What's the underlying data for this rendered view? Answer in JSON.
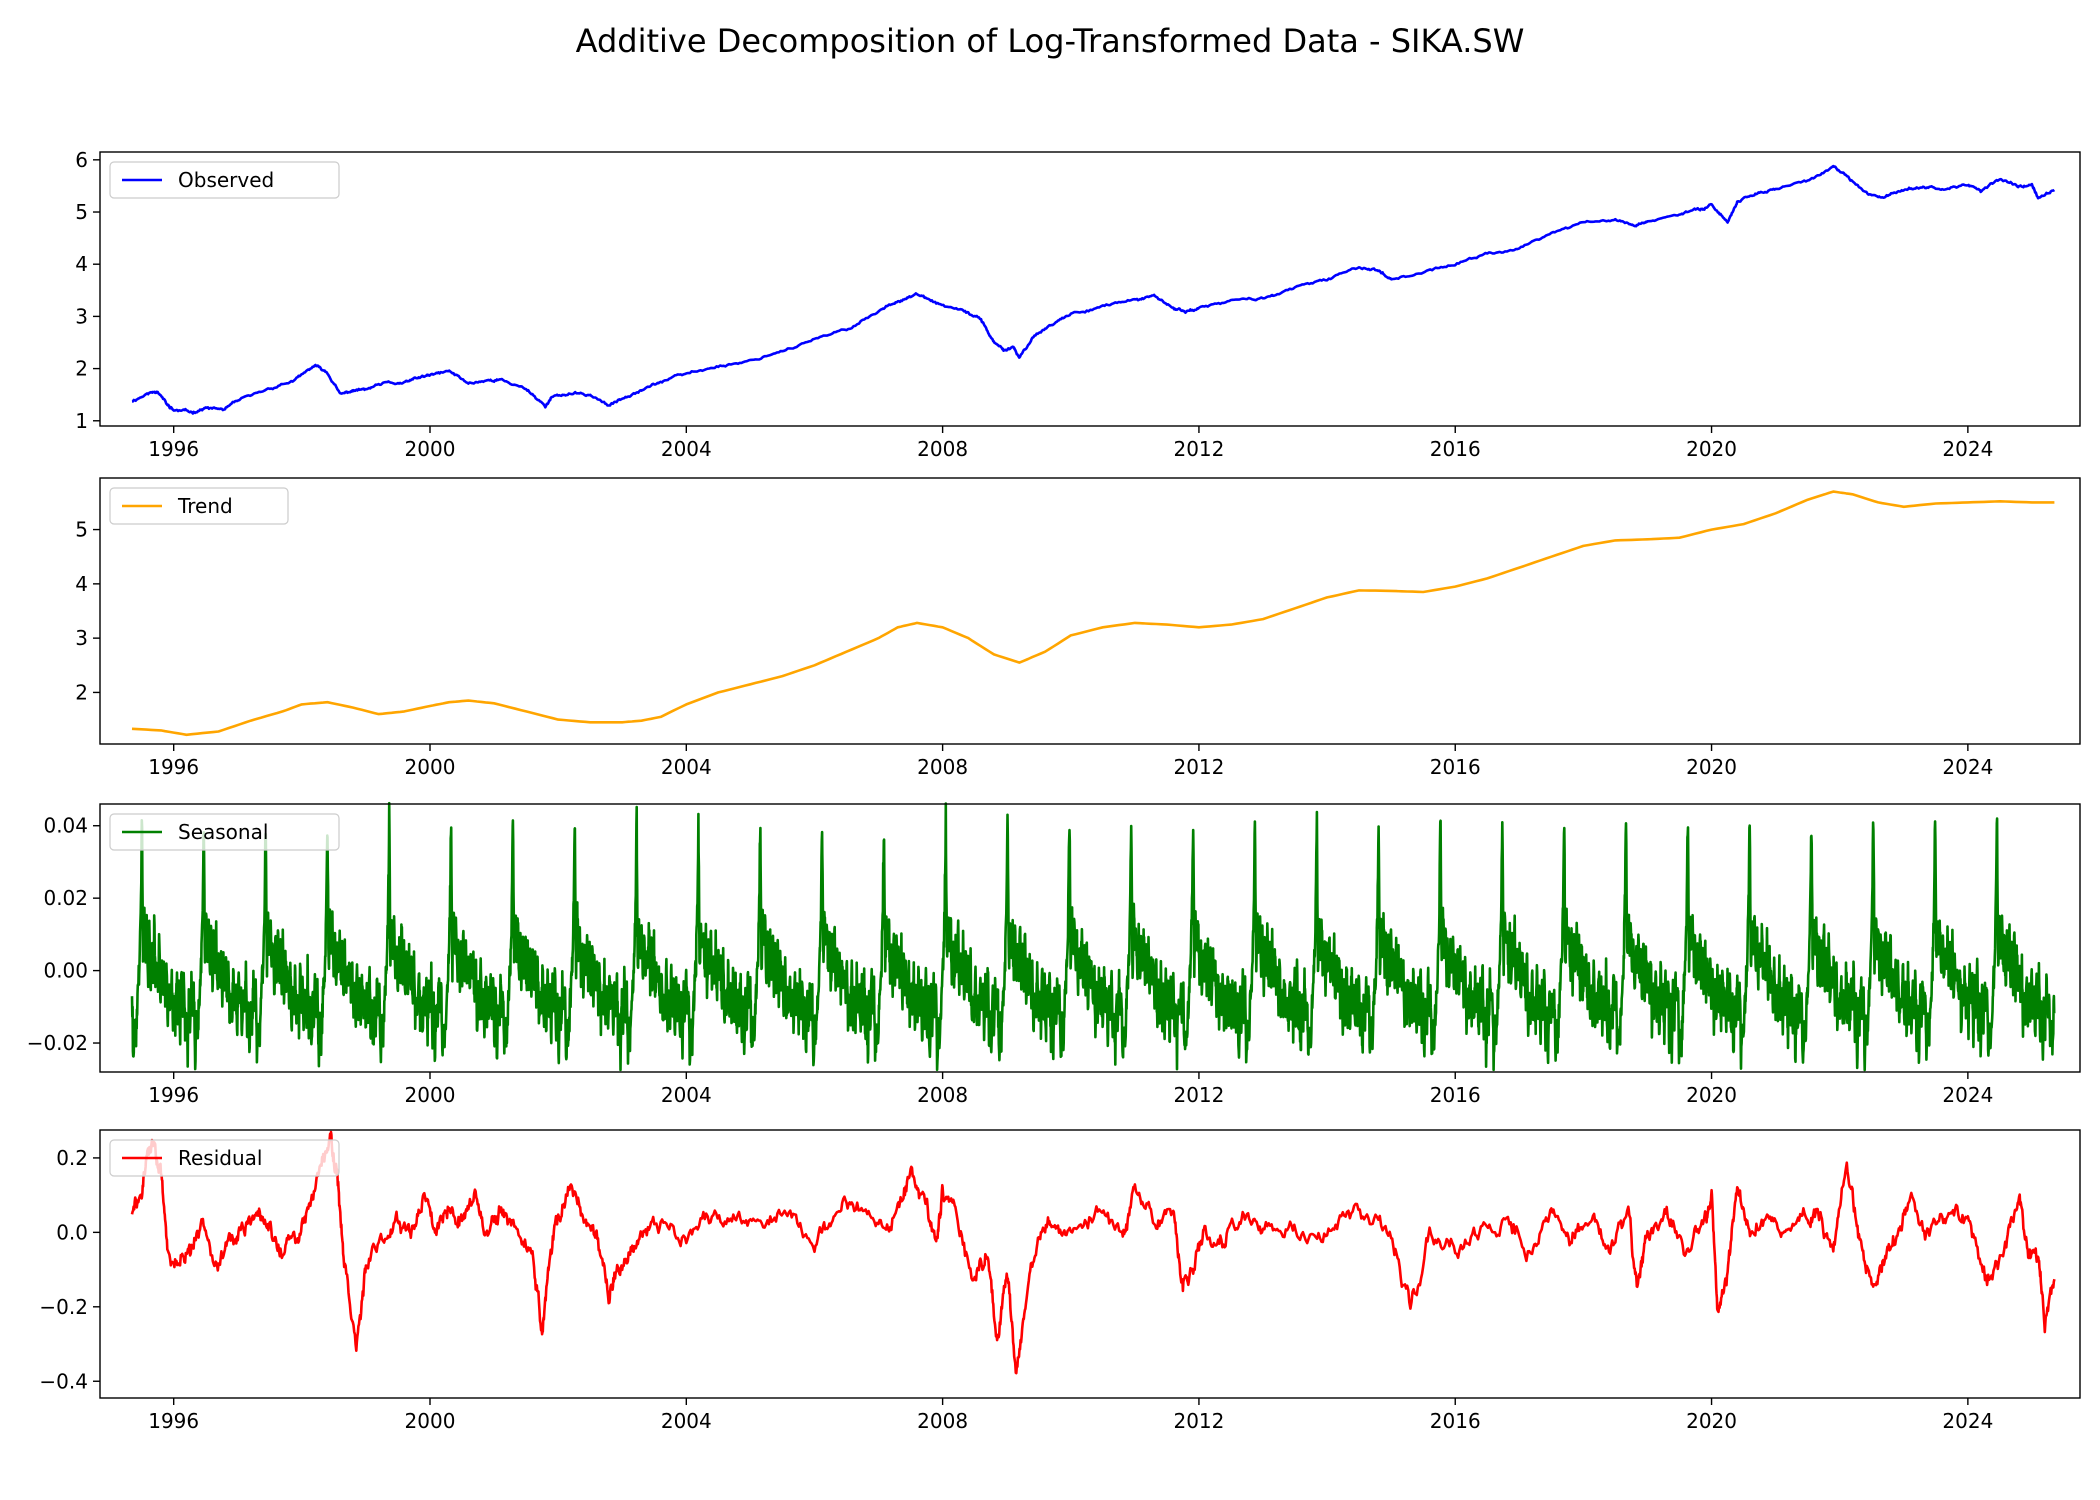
{
  "figure": {
    "title": "Additive Decomposition of Log-Transformed Data - SIKA.SW"
  },
  "chart_data": [
    {
      "type": "line",
      "name": "observed-panel",
      "legend": "Observed",
      "legend_position": "upper-left",
      "color": "#0000ff",
      "x_range": [
        1994.85,
        2025.75
      ],
      "xticks": [
        1996,
        2000,
        2004,
        2008,
        2012,
        2016,
        2020,
        2024
      ],
      "ylim": [
        0.9,
        6.15
      ],
      "yticks": [
        1,
        2,
        3,
        4,
        5,
        6
      ],
      "ytick_labels": [
        "1",
        "2",
        "3",
        "4",
        "5",
        "6"
      ],
      "noise": 0.03,
      "noise_len": 8,
      "noise_seed": 11,
      "x": [
        1995.35,
        1995.6,
        1995.75,
        1995.9,
        1996.0,
        1996.3,
        1996.5,
        1996.8,
        1997.0,
        1997.5,
        1997.9,
        1998.2,
        1998.4,
        1998.6,
        1998.8,
        1999.0,
        1999.3,
        1999.6,
        1999.8,
        2000.0,
        2000.3,
        2000.6,
        2000.9,
        2001.1,
        2001.5,
        2001.8,
        2001.9,
        2002.2,
        2002.5,
        2002.8,
        2003.0,
        2003.3,
        2003.6,
        2004.0,
        2004.5,
        2005.0,
        2005.5,
        2006.0,
        2006.5,
        2007.0,
        2007.3,
        2007.6,
        2007.9,
        2008.3,
        2008.6,
        2008.8,
        2008.95,
        2009.1,
        2009.2,
        2009.4,
        2009.7,
        2010.0,
        2010.5,
        2011.0,
        2011.3,
        2011.6,
        2011.8,
        2012.0,
        2012.5,
        2013.0,
        2013.5,
        2014.0,
        2014.5,
        2014.8,
        2015.0,
        2015.5,
        2016.0,
        2016.5,
        2017.0,
        2017.5,
        2018.0,
        2018.5,
        2018.8,
        2019.0,
        2019.5,
        2019.8,
        2020.0,
        2020.25,
        2020.4,
        2020.7,
        2021.0,
        2021.5,
        2021.9,
        2022.1,
        2022.4,
        2022.7,
        2023.0,
        2023.3,
        2023.6,
        2024.0,
        2024.2,
        2024.5,
        2024.8,
        2025.0,
        2025.1,
        2025.35
      ],
      "y": [
        1.38,
        1.52,
        1.58,
        1.3,
        1.2,
        1.17,
        1.24,
        1.22,
        1.38,
        1.62,
        1.78,
        2.06,
        1.92,
        1.5,
        1.58,
        1.6,
        1.72,
        1.72,
        1.82,
        1.87,
        1.95,
        1.72,
        1.78,
        1.78,
        1.62,
        1.28,
        1.45,
        1.52,
        1.5,
        1.28,
        1.45,
        1.6,
        1.75,
        1.9,
        2.05,
        2.15,
        2.35,
        2.55,
        2.75,
        3.1,
        3.3,
        3.42,
        3.25,
        3.1,
        2.95,
        2.5,
        2.35,
        2.4,
        2.2,
        2.6,
        2.85,
        3.05,
        3.2,
        3.32,
        3.38,
        3.15,
        3.1,
        3.15,
        3.3,
        3.35,
        3.55,
        3.7,
        3.95,
        3.88,
        3.72,
        3.85,
        4.0,
        4.2,
        4.3,
        4.6,
        4.8,
        4.85,
        4.75,
        4.82,
        4.95,
        5.05,
        5.15,
        4.8,
        5.2,
        5.35,
        5.45,
        5.6,
        5.85,
        5.7,
        5.35,
        5.3,
        5.45,
        5.5,
        5.45,
        5.5,
        5.4,
        5.65,
        5.5,
        5.52,
        5.25,
        5.42
      ]
    },
    {
      "type": "line",
      "name": "trend-panel",
      "legend": "Trend",
      "legend_position": "upper-left",
      "color": "#ffa500",
      "x_range": [
        1994.85,
        2025.75
      ],
      "xticks": [
        1996,
        2000,
        2004,
        2008,
        2012,
        2016,
        2020,
        2024
      ],
      "ylim": [
        1.05,
        5.95
      ],
      "yticks": [
        2,
        3,
        4,
        5
      ],
      "ytick_labels": [
        "2",
        "3",
        "4",
        "5"
      ],
      "x": [
        1995.35,
        1995.8,
        1996.2,
        1996.7,
        1997.2,
        1997.7,
        1998.0,
        1998.4,
        1998.8,
        1999.2,
        1999.6,
        2000.0,
        2000.3,
        2000.6,
        2001.0,
        2001.5,
        2002.0,
        2002.5,
        2003.0,
        2003.3,
        2003.6,
        2004.0,
        2004.5,
        2005.0,
        2005.5,
        2006.0,
        2006.5,
        2007.0,
        2007.3,
        2007.6,
        2008.0,
        2008.4,
        2008.8,
        2009.2,
        2009.6,
        2010.0,
        2010.5,
        2011.0,
        2011.5,
        2012.0,
        2012.5,
        2013.0,
        2013.5,
        2014.0,
        2014.5,
        2015.0,
        2015.5,
        2016.0,
        2016.5,
        2017.0,
        2017.5,
        2018.0,
        2018.5,
        2019.0,
        2019.5,
        2020.0,
        2020.5,
        2021.0,
        2021.5,
        2021.9,
        2022.2,
        2022.6,
        2023.0,
        2023.5,
        2024.0,
        2024.5,
        2025.0,
        2025.35
      ],
      "y": [
        1.33,
        1.3,
        1.22,
        1.28,
        1.48,
        1.65,
        1.78,
        1.82,
        1.72,
        1.6,
        1.65,
        1.75,
        1.82,
        1.85,
        1.8,
        1.65,
        1.5,
        1.45,
        1.45,
        1.48,
        1.55,
        1.78,
        2.0,
        2.15,
        2.3,
        2.5,
        2.75,
        3.0,
        3.2,
        3.28,
        3.2,
        3.0,
        2.7,
        2.55,
        2.75,
        3.05,
        3.2,
        3.28,
        3.25,
        3.2,
        3.25,
        3.35,
        3.55,
        3.75,
        3.88,
        3.87,
        3.85,
        3.95,
        4.1,
        4.3,
        4.5,
        4.7,
        4.8,
        4.82,
        4.85,
        5.0,
        5.1,
        5.3,
        5.55,
        5.7,
        5.65,
        5.5,
        5.42,
        5.48,
        5.5,
        5.52,
        5.5,
        5.5
      ]
    },
    {
      "type": "line",
      "name": "seasonal-panel",
      "legend": "Seasonal",
      "legend_position": "upper-left",
      "color": "#008000",
      "x_range": [
        1994.85,
        2025.75
      ],
      "xticks": [
        1996,
        2000,
        2004,
        2008,
        2012,
        2016,
        2020,
        2024
      ],
      "ylim": [
        -0.028,
        0.046
      ],
      "yticks": [
        -0.02,
        0.0,
        0.02,
        0.04
      ],
      "ytick_labels": [
        "−0.02",
        "0.00",
        "0.02",
        "0.04"
      ],
      "period_years": 0.965,
      "x_start": 1995.35,
      "x_end": 2025.35,
      "phase_start": 0.84,
      "pattern_phase": [
        0.0,
        0.02,
        0.04,
        0.06,
        0.08,
        0.1,
        0.12,
        0.14,
        0.16,
        0.18,
        0.2,
        0.22,
        0.24,
        0.26,
        0.28,
        0.3,
        0.32,
        0.34,
        0.36,
        0.38,
        0.4,
        0.42,
        0.44,
        0.46,
        0.48,
        0.5,
        0.52,
        0.54,
        0.56,
        0.58,
        0.6,
        0.62,
        0.64,
        0.66,
        0.68,
        0.7,
        0.72,
        0.74,
        0.76,
        0.78,
        0.8,
        0.82,
        0.84,
        0.86,
        0.88,
        0.9,
        0.92,
        0.94,
        0.96,
        0.98,
        1.0
      ],
      "pattern_value": [
        0.043,
        0.0,
        0.015,
        0.005,
        0.013,
        -0.002,
        0.01,
        -0.005,
        0.008,
        -0.002,
        0.012,
        -0.004,
        0.006,
        -0.006,
        0.009,
        -0.008,
        0.004,
        -0.004,
        0.002,
        -0.01,
        0.003,
        -0.015,
        -0.006,
        -0.012,
        0.001,
        -0.014,
        -0.005,
        -0.016,
        0.0,
        -0.012,
        -0.004,
        -0.018,
        -0.002,
        -0.014,
        0.001,
        -0.02,
        -0.008,
        -0.024,
        -0.006,
        -0.016,
        -0.002,
        -0.012,
        -0.005,
        -0.024,
        -0.015,
        -0.02,
        -0.01,
        -0.004,
        0.002,
        0.015,
        0.043
      ]
    },
    {
      "type": "line",
      "name": "residual-panel",
      "legend": "Residual",
      "legend_position": "upper-left",
      "color": "#ff0000",
      "x_range": [
        1994.85,
        2025.75
      ],
      "xticks": [
        1996,
        2000,
        2004,
        2008,
        2012,
        2016,
        2020,
        2024
      ],
      "ylim": [
        -0.445,
        0.275
      ],
      "yticks": [
        -0.4,
        -0.2,
        0.0,
        0.2
      ],
      "ytick_labels": [
        "−0.4",
        "−0.2",
        "0.0",
        "0.2"
      ],
      "noise": 0.03,
      "noise_len": 4,
      "noise_seed": 29,
      "x": [
        1995.35,
        1995.5,
        1995.6,
        1995.7,
        1995.8,
        1995.9,
        1996.1,
        1996.3,
        1996.5,
        1996.7,
        1996.9,
        1997.1,
        1997.3,
        1997.5,
        1997.7,
        1997.9,
        1998.1,
        1998.3,
        1998.45,
        1998.55,
        1998.65,
        1998.85,
        1999.0,
        1999.3,
        1999.5,
        1999.7,
        1999.9,
        2000.1,
        2000.3,
        2000.5,
        2000.7,
        2000.9,
        2001.1,
        2001.3,
        2001.6,
        2001.75,
        2001.85,
        2002.0,
        2002.2,
        2002.4,
        2002.6,
        2002.8,
        2002.9,
        2003.1,
        2003.3,
        2003.6,
        2004.0,
        2004.4,
        2004.8,
        2005.2,
        2005.6,
        2006.0,
        2006.3,
        2006.6,
        2007.0,
        2007.3,
        2007.5,
        2007.7,
        2007.9,
        2008.0,
        2008.2,
        2008.5,
        2008.7,
        2008.85,
        2009.0,
        2009.15,
        2009.3,
        2009.5,
        2009.7,
        2010.0,
        2010.4,
        2010.8,
        2011.0,
        2011.3,
        2011.6,
        2011.75,
        2011.9,
        2012.1,
        2012.4,
        2012.7,
        2013.0,
        2013.4,
        2013.8,
        2014.2,
        2014.6,
        2015.0,
        2015.3,
        2015.6,
        2016.0,
        2016.4,
        2016.8,
        2017.2,
        2017.5,
        2017.8,
        2018.1,
        2018.4,
        2018.7,
        2018.85,
        2019.0,
        2019.3,
        2019.6,
        2019.9,
        2020.0,
        2020.1,
        2020.25,
        2020.4,
        2020.6,
        2020.9,
        2021.2,
        2021.5,
        2021.7,
        2021.9,
        2022.1,
        2022.3,
        2022.5,
        2022.7,
        2022.9,
        2023.1,
        2023.4,
        2023.7,
        2024.0,
        2024.3,
        2024.6,
        2024.8,
        2024.95,
        2025.1,
        2025.2,
        2025.35
      ],
      "y": [
        0.05,
        0.1,
        0.22,
        0.24,
        0.15,
        -0.05,
        -0.08,
        -0.05,
        0.02,
        -0.08,
        -0.02,
        0.0,
        0.05,
        0.0,
        -0.05,
        -0.02,
        0.05,
        0.2,
        0.25,
        0.15,
        -0.05,
        -0.3,
        -0.1,
        -0.02,
        0.05,
        0.0,
        0.1,
        0.02,
        0.08,
        0.05,
        0.1,
        0.0,
        0.05,
        0.02,
        -0.05,
        -0.28,
        -0.1,
        0.05,
        0.12,
        0.05,
        -0.02,
        -0.2,
        -0.1,
        -0.05,
        0.0,
        0.03,
        0.0,
        0.03,
        0.05,
        0.02,
        0.05,
        -0.03,
        0.05,
        0.1,
        0.0,
        0.05,
        0.15,
        0.1,
        -0.05,
        0.12,
        0.05,
        -0.15,
        -0.05,
        -0.3,
        -0.1,
        -0.38,
        -0.2,
        0.0,
        0.05,
        0.0,
        0.05,
        0.0,
        0.1,
        0.03,
        0.05,
        -0.15,
        -0.08,
        0.0,
        -0.02,
        0.05,
        0.0,
        0.03,
        -0.02,
        0.05,
        0.05,
        0.0,
        -0.2,
        0.0,
        -0.02,
        0.0,
        0.03,
        -0.05,
        0.05,
        0.0,
        0.05,
        -0.05,
        0.05,
        -0.15,
        0.0,
        0.05,
        -0.05,
        0.05,
        0.1,
        -0.22,
        -0.1,
        0.1,
        0.0,
        0.03,
        0.0,
        0.05,
        0.05,
        -0.05,
        0.2,
        -0.02,
        -0.15,
        -0.05,
        0.0,
        0.1,
        0.0,
        0.05,
        0.05,
        -0.15,
        -0.02,
        0.08,
        -0.05,
        -0.08,
        -0.25,
        -0.12
      ]
    }
  ]
}
